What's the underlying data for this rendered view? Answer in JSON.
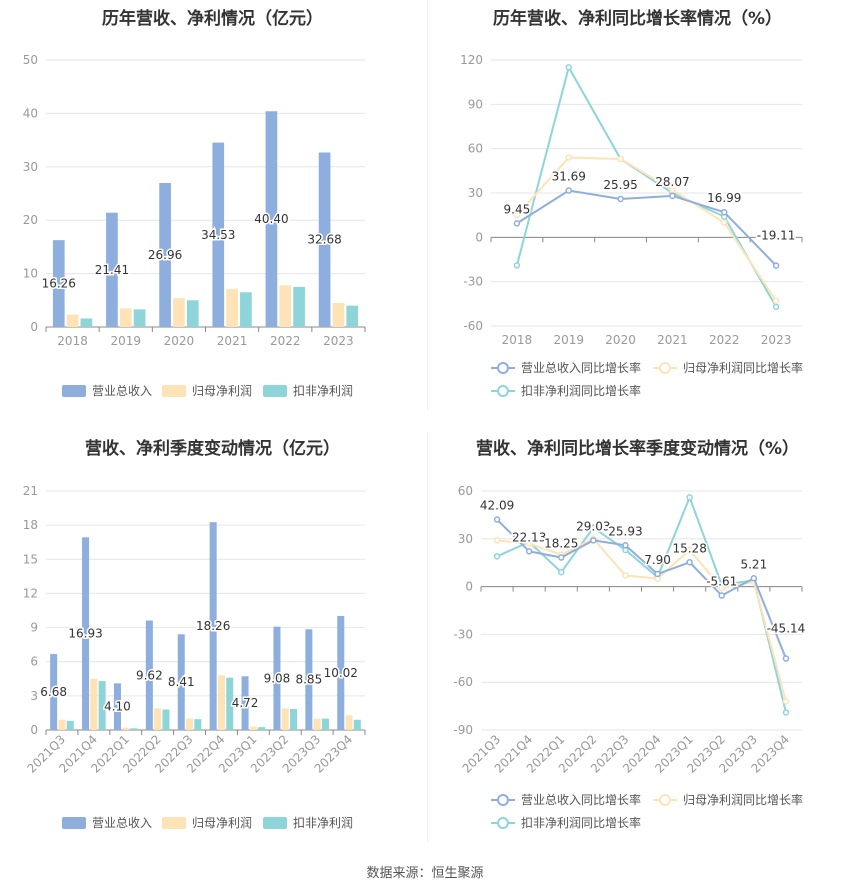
{
  "source_label": "数据来源：恒生聚源",
  "colors": {
    "revenue": "#8eaede",
    "parent_profit": "#fde3b6",
    "non_gaap": "#8dd5d9",
    "grid": "#e6e6e6",
    "axis": "#999999",
    "label": "#333333"
  },
  "chart_data": [
    {
      "type": "bar",
      "title": "历年营收、净利情况（亿元）",
      "categories": [
        "2018",
        "2019",
        "2020",
        "2021",
        "2022",
        "2023"
      ],
      "ylim": [
        0,
        50
      ],
      "yticks": [
        0,
        10,
        20,
        30,
        40,
        50
      ],
      "legend_position": "bottom",
      "series": [
        {
          "name": "营业总收入",
          "values": [
            16.26,
            21.41,
            26.96,
            34.53,
            40.4,
            32.68
          ],
          "labels": [
            "16.26",
            "21.41",
            "26.96",
            "34.53",
            "40.40",
            "32.68"
          ]
        },
        {
          "name": "归母净利润",
          "values": [
            2.3,
            3.5,
            5.4,
            7.1,
            7.8,
            4.5
          ]
        },
        {
          "name": "扣非净利润",
          "values": [
            1.6,
            3.3,
            5.0,
            6.5,
            7.5,
            4.0
          ]
        }
      ]
    },
    {
      "type": "line",
      "title": "历年营收、净利同比增长率情况（%）",
      "categories": [
        "2018",
        "2019",
        "2020",
        "2021",
        "2022",
        "2023"
      ],
      "ylim": [
        -60,
        120
      ],
      "yticks": [
        -60,
        -30,
        0,
        30,
        60,
        90,
        120
      ],
      "legend_position": "bottom",
      "series": [
        {
          "name": "营业总收入同比增长率",
          "values": [
            9.45,
            31.69,
            25.95,
            28.07,
            16.99,
            -19.11
          ],
          "labels": [
            "9.45",
            "31.69",
            "25.95",
            "28.07",
            "16.99",
            "-19.11"
          ]
        },
        {
          "name": "归母净利润同比增长率",
          "values": [
            15,
            54,
            53,
            32,
            10,
            -43
          ]
        },
        {
          "name": "扣非净利润同比增长率",
          "values": [
            -19,
            115,
            53,
            30,
            14,
            -47
          ]
        }
      ]
    },
    {
      "type": "bar",
      "title": "营收、净利季度变动情况（亿元）",
      "categories": [
        "2021Q3",
        "2021Q4",
        "2022Q1",
        "2022Q2",
        "2022Q3",
        "2022Q4",
        "2023Q1",
        "2023Q2",
        "2023Q3",
        "2023Q4"
      ],
      "ylim": [
        0,
        21
      ],
      "yticks": [
        0,
        3,
        6,
        9,
        12,
        15,
        18,
        21
      ],
      "legend_position": "bottom",
      "series": [
        {
          "name": "营业总收入",
          "values": [
            6.68,
            16.93,
            4.1,
            9.62,
            8.41,
            18.26,
            4.72,
            9.08,
            8.85,
            10.02
          ],
          "labels": [
            "6.68",
            "16.93",
            "4.10",
            "9.62",
            "8.41",
            "18.26",
            "4.72",
            "9.08",
            "8.85",
            "10.02"
          ]
        },
        {
          "name": "归母净利润",
          "values": [
            0.9,
            4.5,
            0.2,
            1.9,
            1.0,
            4.8,
            0.3,
            1.9,
            1.0,
            1.3
          ]
        },
        {
          "name": "扣非净利润",
          "values": [
            0.8,
            4.3,
            0.15,
            1.8,
            0.95,
            4.6,
            0.25,
            1.85,
            1.0,
            0.9
          ]
        }
      ]
    },
    {
      "type": "line",
      "title": "营收、净利同比增长率季度变动情况（%）",
      "categories": [
        "2021Q3",
        "2021Q4",
        "2022Q1",
        "2022Q2",
        "2022Q3",
        "2022Q4",
        "2023Q1",
        "2023Q2",
        "2023Q3",
        "2023Q4"
      ],
      "ylim": [
        -90,
        60
      ],
      "yticks": [
        -90,
        -60,
        -30,
        0,
        30,
        60
      ],
      "legend_position": "bottom",
      "series": [
        {
          "name": "营业总收入同比增长率",
          "values": [
            42.09,
            22.13,
            18.25,
            29.03,
            25.93,
            7.9,
            15.28,
            -5.61,
            5.21,
            -45.14
          ],
          "labels": [
            "42.09",
            "22.13",
            "18.25",
            "29.03",
            "25.93",
            "7.90",
            "15.28",
            "-5.61",
            "5.21",
            "-45.14"
          ]
        },
        {
          "name": "归母净利润同比增长率",
          "values": [
            29,
            27,
            20,
            30,
            7,
            5,
            23,
            -1,
            3,
            -72
          ]
        },
        {
          "name": "扣非净利润同比增长率",
          "values": [
            19,
            28,
            9,
            37,
            23,
            6,
            56,
            1,
            4,
            -79
          ]
        }
      ]
    }
  ]
}
